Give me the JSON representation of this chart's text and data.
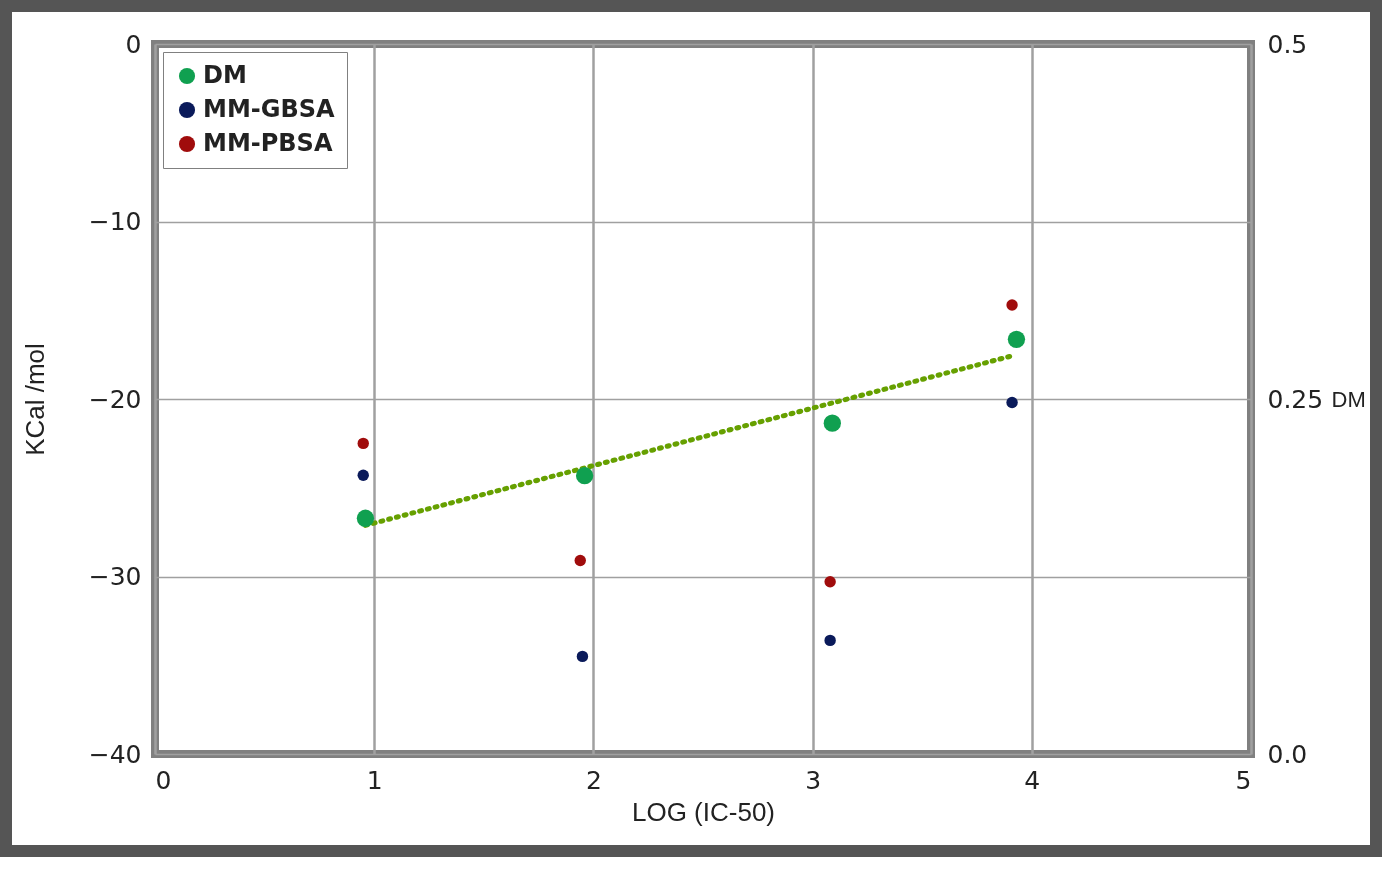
{
  "chart_data": {
    "type": "scatter",
    "xlabel": "LOG (IC-50)",
    "ylabel": "KCal /mol",
    "y2label": "DM",
    "xlim": [
      0,
      5
    ],
    "xticks": [
      0,
      1,
      2,
      3,
      4,
      5
    ],
    "ylim": [
      -40,
      0
    ],
    "yticks": [
      -40,
      -30,
      -20,
      -10,
      0
    ],
    "y2lim": [
      0,
      0.5
    ],
    "y2ticks": [
      {
        "value": 0,
        "label": "0.0"
      },
      0.25,
      0.5
    ],
    "series": [
      {
        "name": "DM",
        "color": "#10a050",
        "axis": "y2",
        "x": [
          0.96,
          1.96,
          3.09,
          3.93
        ],
        "values": [
          0.166,
          0.196,
          0.233,
          0.292
        ]
      },
      {
        "name": "MM-GBSA",
        "color": "#0a1a5a",
        "x": [
          0.95,
          1.95,
          3.08,
          3.91
        ],
        "values": [
          -24.3,
          -34.5,
          -33.6,
          -20.2
        ]
      },
      {
        "name": "MM-PBSA",
        "color": "#a00c0c",
        "x": [
          0.95,
          1.94,
          3.08,
          3.91
        ],
        "values": [
          -22.5,
          -29.1,
          -30.3,
          -14.7
        ]
      },
      {
        "type": "line",
        "marker": "none",
        "color": "#66a000",
        "axis": "y2",
        "x": [
          0.96,
          3.9
        ],
        "values": [
          0.161,
          0.28
        ]
      }
    ],
    "marker": "circle",
    "line_style": "dotted",
    "grid": true,
    "legend": "top left"
  }
}
